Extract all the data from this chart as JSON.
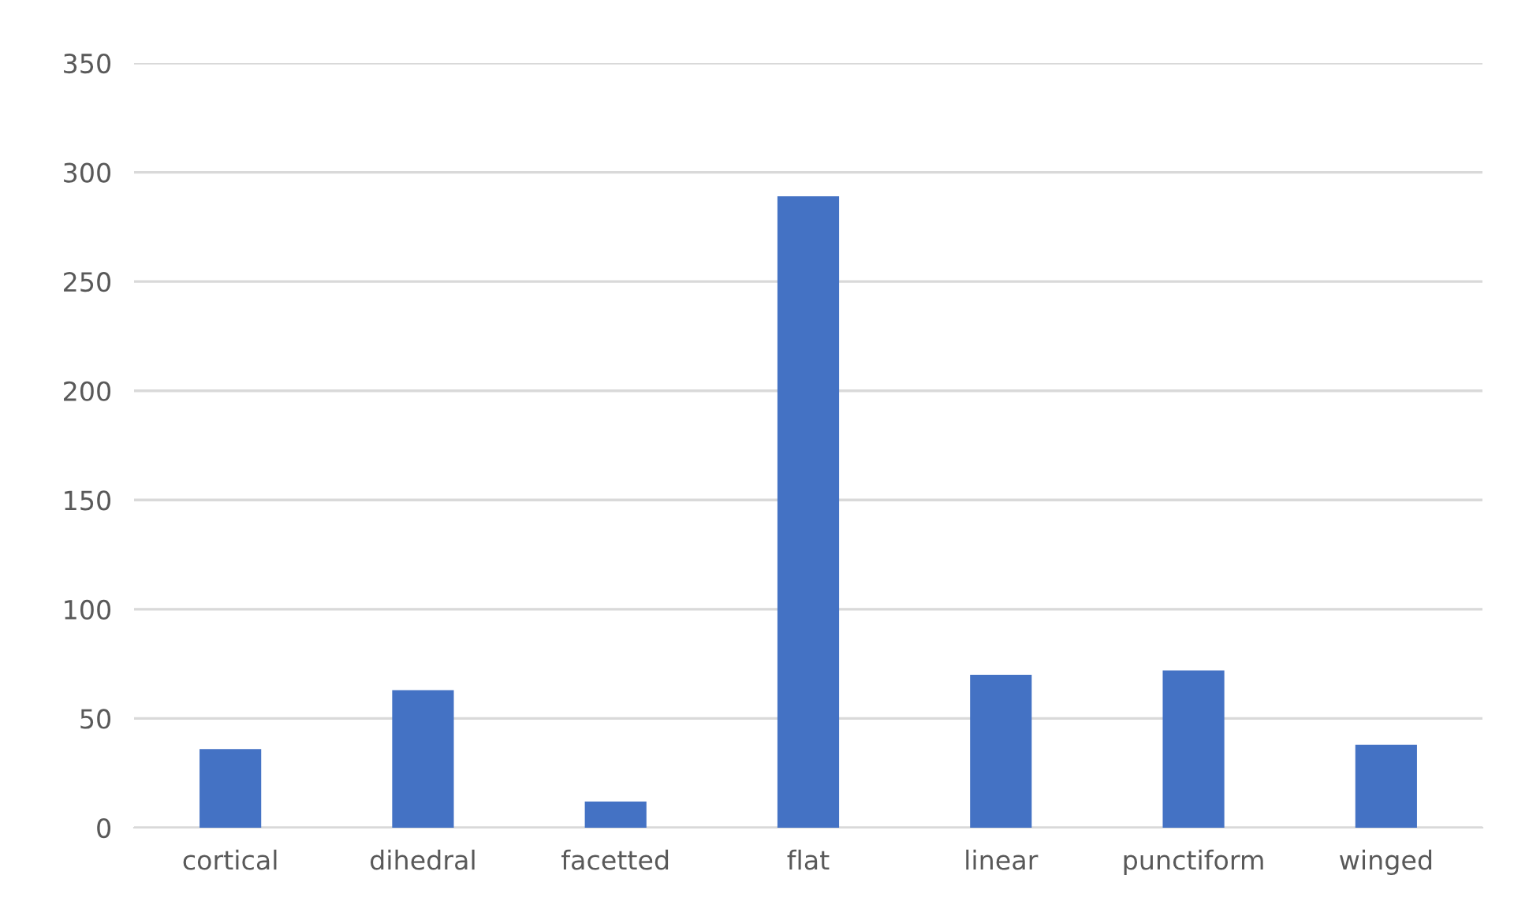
{
  "chart_data": {
    "type": "bar",
    "categories": [
      "cortical",
      "dihedral",
      "facetted",
      "flat",
      "linear",
      "punctiform",
      "winged"
    ],
    "values": [
      36,
      63,
      12,
      289,
      70,
      72,
      38
    ],
    "color": "#4472c4",
    "ylim": [
      0,
      350
    ],
    "yticks": [
      0,
      50,
      100,
      150,
      200,
      250,
      300,
      350
    ],
    "grid": "y",
    "legend": false
  }
}
